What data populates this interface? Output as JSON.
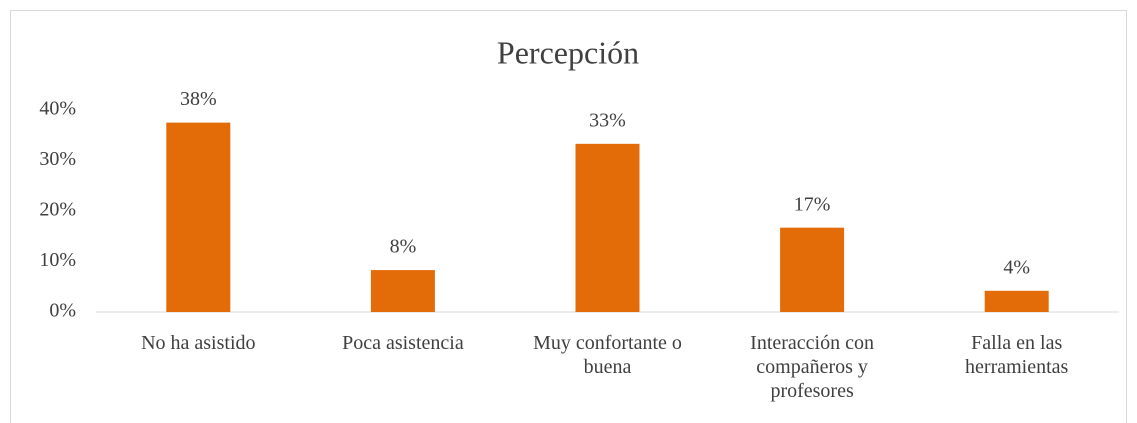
{
  "chart_data": {
    "type": "bar",
    "title": "Percepción",
    "categories": [
      "No ha asistido",
      "Poca asistencia",
      "Muy confortante o buena",
      "Interacción con compañeros y profesores",
      "Falla en las herramientas"
    ],
    "values": [
      37.5,
      8.3,
      33.3,
      16.7,
      4.2
    ],
    "value_labels": [
      "38%",
      "8%",
      "33%",
      "17%",
      "4%"
    ],
    "color": "#e36c09",
    "ylim": [
      0,
      40
    ],
    "yticks": [
      {
        "value": 0,
        "label": "0%"
      },
      {
        "value": 10,
        "label": "10%"
      },
      {
        "value": 20,
        "label": "20%"
      },
      {
        "value": 30,
        "label": "30%"
      },
      {
        "value": 40,
        "label": "40%"
      }
    ],
    "grid": false
  }
}
